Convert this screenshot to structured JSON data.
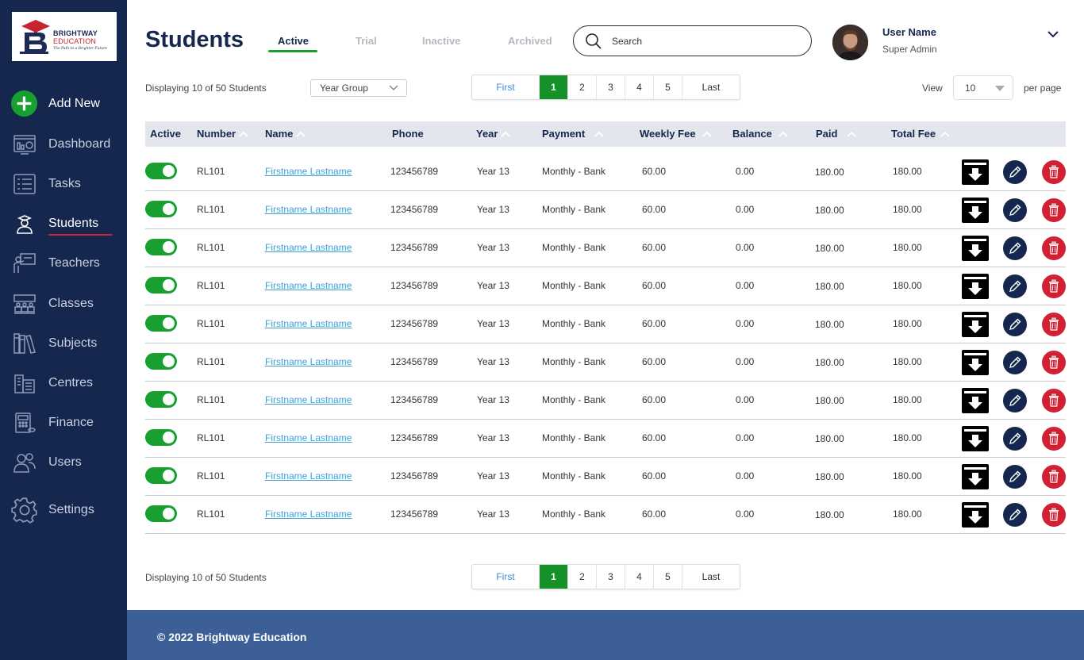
{
  "brand": {
    "line1": "BRIGHTWAY",
    "line2": "EDUCATION",
    "tagline": "The Path to a Brighter Future"
  },
  "sidebar": {
    "add_new": "Add New",
    "items": [
      {
        "label": "Dashboard",
        "icon": "dashboard-icon"
      },
      {
        "label": "Tasks",
        "icon": "tasks-icon"
      },
      {
        "label": "Students",
        "icon": "students-icon",
        "active": true
      },
      {
        "label": "Teachers",
        "icon": "teachers-icon"
      },
      {
        "label": "Classes",
        "icon": "classes-icon"
      },
      {
        "label": "Subjects",
        "icon": "subjects-icon"
      },
      {
        "label": "Centres",
        "icon": "centres-icon"
      },
      {
        "label": "Finance",
        "icon": "finance-icon"
      },
      {
        "label": "Users",
        "icon": "users-icon"
      },
      {
        "label": "Settings",
        "icon": "gear-icon"
      }
    ]
  },
  "header": {
    "title": "Students",
    "tabs": [
      "Active",
      "Trial",
      "Inactive",
      "Archived"
    ],
    "active_tab": "Active",
    "search_placeholder": "Search"
  },
  "user": {
    "name": "User Name",
    "role": "Super Admin"
  },
  "toolbar": {
    "displaying": "Displaying 10 of 50 Students",
    "year_group": "Year Group",
    "view_label": "View",
    "per_page_value": "10",
    "per_page_label": "per page"
  },
  "pagination": {
    "first": "First",
    "pages": [
      "1",
      "2",
      "3",
      "4",
      "5"
    ],
    "current": "1",
    "last": "Last"
  },
  "table": {
    "columns": [
      "Active",
      "Number",
      "Name",
      "Phone",
      "Year",
      "Payment",
      "Weekly Fee",
      "Balance",
      "Paid",
      "Total Fee"
    ],
    "rows": [
      {
        "active": true,
        "number": "RL101",
        "name": "Firstname Lastname",
        "phone": "123456789",
        "year": "Year 13",
        "payment": "Monthly - Bank",
        "weekly_fee": "60.00",
        "balance": "0.00",
        "paid": "180.00",
        "total_fee": "180.00"
      },
      {
        "active": true,
        "number": "RL101",
        "name": "Firstname Lastname",
        "phone": "123456789",
        "year": "Year 13",
        "payment": "Monthly - Bank",
        "weekly_fee": "60.00",
        "balance": "0.00",
        "paid": "180.00",
        "total_fee": "180.00"
      },
      {
        "active": true,
        "number": "RL101",
        "name": "Firstname Lastname",
        "phone": "123456789",
        "year": "Year 13",
        "payment": "Monthly - Bank",
        "weekly_fee": "60.00",
        "balance": "0.00",
        "paid": "180.00",
        "total_fee": "180.00"
      },
      {
        "active": true,
        "number": "RL101",
        "name": "Firstname Lastname",
        "phone": "123456789",
        "year": "Year 13",
        "payment": "Monthly - Bank",
        "weekly_fee": "60.00",
        "balance": "0.00",
        "paid": "180.00",
        "total_fee": "180.00"
      },
      {
        "active": true,
        "number": "RL101",
        "name": "Firstname Lastname",
        "phone": "123456789",
        "year": "Year 13",
        "payment": "Monthly - Bank",
        "weekly_fee": "60.00",
        "balance": "0.00",
        "paid": "180.00",
        "total_fee": "180.00"
      },
      {
        "active": true,
        "number": "RL101",
        "name": "Firstname Lastname",
        "phone": "123456789",
        "year": "Year 13",
        "payment": "Monthly - Bank",
        "weekly_fee": "60.00",
        "balance": "0.00",
        "paid": "180.00",
        "total_fee": "180.00"
      },
      {
        "active": true,
        "number": "RL101",
        "name": "Firstname Lastname",
        "phone": "123456789",
        "year": "Year 13",
        "payment": "Monthly - Bank",
        "weekly_fee": "60.00",
        "balance": "0.00",
        "paid": "180.00",
        "total_fee": "180.00"
      },
      {
        "active": true,
        "number": "RL101",
        "name": "Firstname Lastname",
        "phone": "123456789",
        "year": "Year 13",
        "payment": "Monthly - Bank",
        "weekly_fee": "60.00",
        "balance": "0.00",
        "paid": "180.00",
        "total_fee": "180.00"
      },
      {
        "active": true,
        "number": "RL101",
        "name": "Firstname Lastname",
        "phone": "123456789",
        "year": "Year 13",
        "payment": "Monthly - Bank",
        "weekly_fee": "60.00",
        "balance": "0.00",
        "paid": "180.00",
        "total_fee": "180.00"
      },
      {
        "active": true,
        "number": "RL101",
        "name": "Firstname Lastname",
        "phone": "123456789",
        "year": "Year 13",
        "payment": "Monthly - Bank",
        "weekly_fee": "60.00",
        "balance": "0.00",
        "paid": "180.00",
        "total_fee": "180.00"
      }
    ]
  },
  "footer": {
    "text": "© 2022 Brightway Education"
  },
  "colors": {
    "sidebar": "#16274f",
    "accent_green": "#17a030",
    "accent_red": "#d21f34",
    "link": "#3aa3d8",
    "footer": "#3d5f97"
  }
}
